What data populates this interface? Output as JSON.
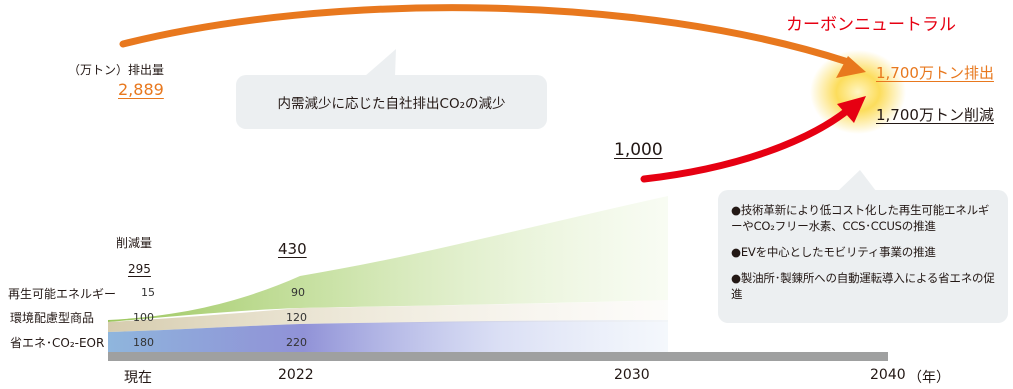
{
  "title": "カーボンニュートラル",
  "current_emissions": {
    "unit_label": "（万トン）排出量",
    "value": "2,889"
  },
  "speech_bubble": "内需減少に応じた自社排出CO₂の減少",
  "milestone_2030": "1,000",
  "target_2040": {
    "emission_label": "1,700万トン排出",
    "reduction_label": "1,700万トン削減"
  },
  "info_box": {
    "items": [
      "●技術革新により低コスト化した再生可能エネルギーやCO₂フリー水素、CCS･CCUSの推進",
      "●EVを中心としたモビリティ事業の推進",
      "●製油所･製錬所への自動運転導入による省エネの促進"
    ]
  },
  "reduction": {
    "header": "削減量",
    "total_current": "295",
    "total_2022": "430",
    "rows": [
      {
        "label": "再生可能エネルギー",
        "current": "15",
        "y2022": "90",
        "color": "#9bc65c"
      },
      {
        "label": "環境配慮型商品",
        "current": "100",
        "y2022": "120",
        "color": "#d8d0b4"
      },
      {
        "label": "省エネ･CO₂-EOR",
        "current": "180",
        "y2022": "220",
        "color": "#7a8fd0"
      }
    ]
  },
  "axis": {
    "labels": [
      "現在",
      "2022",
      "2030",
      "2040"
    ],
    "unit": "（年）"
  },
  "colors": {
    "orange": "#e8781e",
    "red": "#e60012",
    "axis": "#9fa0a0",
    "glow": "#fbd13a"
  }
}
